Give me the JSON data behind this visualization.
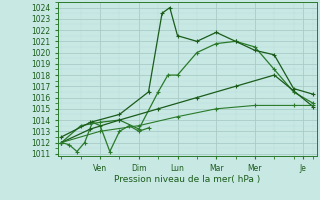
{
  "xlabel": "Pression niveau de la mer( hPa )",
  "bg_color": "#c8e8e4",
  "grid_major_color": "#a8ccc8",
  "grid_minor_color": "#b8dcd8",
  "line_dark": "#1a5c1a",
  "line_mid": "#2a7a2a",
  "ylim_min": 1010.8,
  "ylim_max": 1024.5,
  "yticks": [
    1011,
    1012,
    1013,
    1014,
    1015,
    1016,
    1017,
    1018,
    1019,
    1020,
    1021,
    1022,
    1023,
    1024
  ],
  "xlim_min": -0.2,
  "xlim_max": 13.2,
  "xtick_pos": [
    2.0,
    4.0,
    6.0,
    8.0,
    10.0,
    12.5
  ],
  "xtick_labels": [
    "Ven",
    "Dim",
    "Lun",
    "Mar",
    "Mer",
    "Je"
  ],
  "series": [
    {
      "x": [
        0,
        0.4,
        0.8,
        1.2,
        1.6,
        2.0,
        2.5,
        3.0,
        3.5,
        4.0,
        4.5
      ],
      "y": [
        1012.0,
        1011.8,
        1011.2,
        1012.0,
        1013.8,
        1013.5,
        1011.2,
        1013.0,
        1013.5,
        1013.0,
        1013.3
      ],
      "color": "#2a7a2a",
      "lw": 0.9,
      "ms": 2.0
    },
    {
      "x": [
        0,
        1.0,
        2.0,
        3.0,
        4.0,
        5.0,
        5.5,
        6.0,
        7.0,
        8.0,
        9.0,
        10.0,
        11.0,
        12.0,
        13.0
      ],
      "y": [
        1012.0,
        1013.5,
        1013.8,
        1014.0,
        1013.2,
        1016.5,
        1018.0,
        1018.0,
        1020.0,
        1020.8,
        1021.0,
        1020.5,
        1018.5,
        1016.5,
        1015.5
      ],
      "color": "#2a7a2a",
      "lw": 0.9,
      "ms": 2.0
    },
    {
      "x": [
        0,
        1.5,
        3.0,
        5.0,
        7.0,
        9.0,
        11.0,
        13.0
      ],
      "y": [
        1012.0,
        1013.2,
        1014.0,
        1015.0,
        1016.0,
        1017.0,
        1018.0,
        1015.2
      ],
      "color": "#1a5c1a",
      "lw": 0.9,
      "ms": 2.0
    },
    {
      "x": [
        0,
        1.5,
        3.0,
        4.5,
        5.2,
        5.6,
        6.0,
        7.0,
        8.0,
        9.0,
        10.0,
        11.0,
        12.0,
        13.0
      ],
      "y": [
        1012.5,
        1013.8,
        1014.5,
        1016.5,
        1023.5,
        1024.0,
        1021.5,
        1021.0,
        1021.8,
        1021.0,
        1020.2,
        1019.8,
        1016.8,
        1016.3
      ],
      "color": "#1a5c1a",
      "lw": 0.9,
      "ms": 2.0
    },
    {
      "x": [
        0,
        2.0,
        4.0,
        6.0,
        8.0,
        10.0,
        12.0,
        13.0
      ],
      "y": [
        1012.0,
        1013.0,
        1013.5,
        1014.3,
        1015.0,
        1015.3,
        1015.3,
        1015.3
      ],
      "color": "#2a7a2a",
      "lw": 0.8,
      "ms": 1.8
    }
  ]
}
